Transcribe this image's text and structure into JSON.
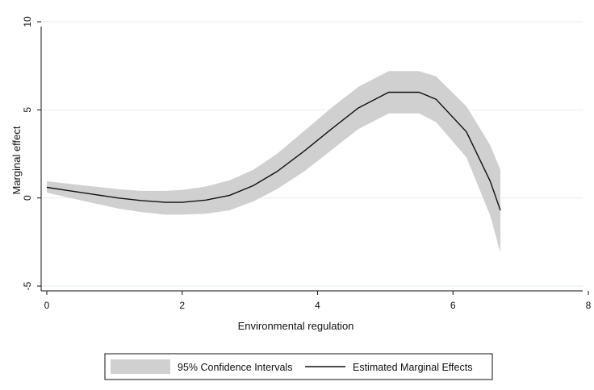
{
  "chart_data": {
    "type": "area",
    "xlabel": "Environmental regulation",
    "ylabel": "Marginal effect",
    "xlim": [
      0,
      8
    ],
    "ylim": [
      -5,
      10
    ],
    "x_ticks": [
      0,
      2,
      4,
      6,
      8
    ],
    "y_ticks": [
      -5,
      0,
      5,
      10
    ],
    "grid": "horizontal",
    "legend_position": "bottom",
    "series": [
      {
        "name": "95% Confidence Intervals",
        "kind": "band",
        "x": [
          0,
          0.35,
          0.7,
          1.05,
          1.4,
          1.75,
          2.0,
          2.35,
          2.7,
          3.05,
          3.4,
          3.8,
          4.2,
          4.6,
          5.05,
          5.5,
          5.75,
          6.2,
          6.55,
          6.7
        ],
        "lower": [
          0.3,
          0.0,
          -0.3,
          -0.6,
          -0.8,
          -0.95,
          -0.95,
          -0.9,
          -0.7,
          -0.2,
          0.5,
          1.5,
          2.7,
          3.9,
          4.8,
          4.8,
          4.3,
          2.3,
          -1.0,
          -3.1
        ],
        "upper": [
          0.95,
          0.8,
          0.65,
          0.5,
          0.4,
          0.4,
          0.45,
          0.65,
          1.0,
          1.6,
          2.5,
          3.8,
          5.1,
          6.3,
          7.2,
          7.2,
          6.9,
          5.2,
          3.0,
          1.6
        ]
      },
      {
        "name": "Estimated Marginal Effects",
        "kind": "line",
        "x": [
          0,
          0.35,
          0.7,
          1.05,
          1.4,
          1.75,
          2.0,
          2.35,
          2.7,
          3.05,
          3.4,
          3.8,
          4.2,
          4.6,
          5.05,
          5.5,
          5.75,
          6.2,
          6.55,
          6.7
        ],
        "y": [
          0.6,
          0.4,
          0.2,
          0.0,
          -0.15,
          -0.25,
          -0.25,
          -0.12,
          0.15,
          0.7,
          1.5,
          2.65,
          3.9,
          5.1,
          6.0,
          6.0,
          5.6,
          3.75,
          0.95,
          -0.7
        ]
      }
    ]
  },
  "colors": {
    "band": "#d0d0d0",
    "line": "#111111",
    "grid": "#e6ebef",
    "axis": "#111111"
  }
}
